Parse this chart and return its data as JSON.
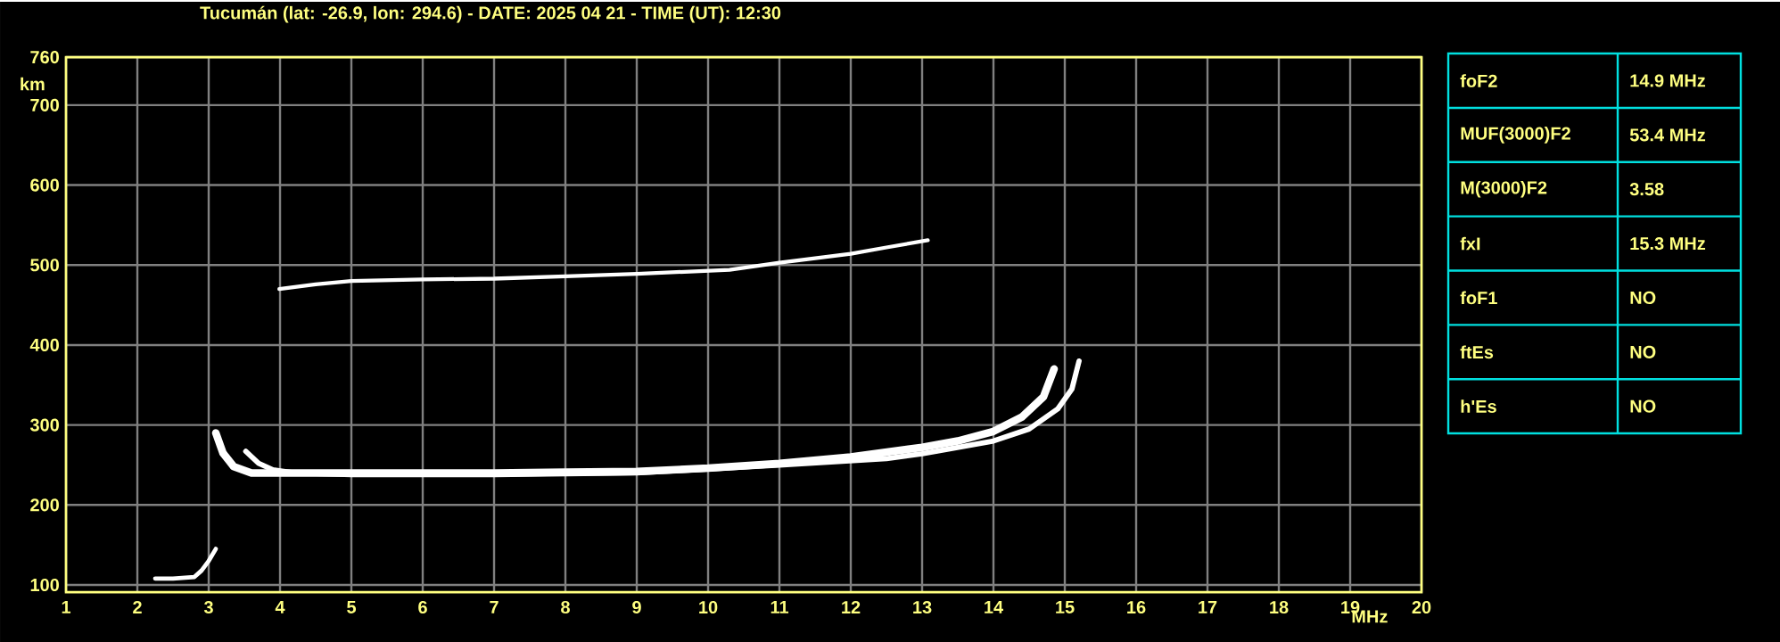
{
  "chart_data": [
    {
      "type": "line",
      "title": "Tucumán (lat: -26.9, lon: 294.6) - DATE: 2025 04 21 - TIME (UT): 12:30",
      "xlabel": "MHz",
      "ylabel": "km",
      "xlim": [
        1,
        20
      ],
      "ylim": [
        91,
        760
      ],
      "xticks": [
        1,
        2,
        3,
        4,
        5,
        6,
        7,
        8,
        9,
        10,
        11,
        12,
        13,
        14,
        15,
        16,
        17,
        18,
        19,
        20
      ],
      "yticks": [
        100,
        200,
        300,
        400,
        500,
        600,
        700,
        760
      ],
      "grid": true,
      "marker": "none",
      "line_style": "solid",
      "series": [
        {
          "color": "#ffffff",
          "x": [
            3.1,
            3.2,
            3.35,
            3.6,
            4,
            5,
            6,
            7,
            8,
            9,
            10,
            11,
            12,
            13,
            13.5,
            14,
            14.4,
            14.7,
            14.85
          ],
          "values": [
            290,
            265,
            248,
            240,
            240,
            240,
            240,
            240,
            241,
            242,
            246,
            252,
            260,
            272,
            280,
            292,
            310,
            335,
            370
          ]
        },
        {
          "color": "#ffffff",
          "x": [
            3.52,
            3.7,
            3.9,
            4.2,
            5,
            7,
            9,
            11,
            12.5,
            13,
            14,
            14.5,
            14.9,
            15.1,
            15.2
          ],
          "values": [
            267,
            252,
            244,
            240,
            238,
            238,
            240,
            250,
            258,
            264,
            280,
            295,
            320,
            345,
            380
          ]
        },
        {
          "color": "#ffffff",
          "x": [
            3.99,
            4.5,
            5,
            6,
            7,
            8,
            9,
            10.3,
            11,
            12,
            12.5,
            13.08
          ],
          "values": [
            470,
            476,
            480,
            482,
            483,
            486,
            489,
            494,
            503,
            514,
            522,
            531
          ]
        },
        {
          "color": "#ffffff",
          "x": [
            2.25,
            2.5,
            2.8,
            2.9,
            3.0,
            3.1
          ],
          "values": [
            108,
            108,
            110,
            118,
            130,
            145
          ]
        }
      ]
    },
    {
      "type": "other",
      "categories": [
        "foF2",
        "MUF(3000)F2",
        "M(3000)F2",
        "fxI",
        "foF1",
        "ftEs",
        "h'Es"
      ],
      "value_labels": [
        "14.9 MHz",
        "53.4 MHz",
        "3.58",
        "15.3 MHz",
        "NO",
        "NO",
        "NO"
      ]
    }
  ]
}
